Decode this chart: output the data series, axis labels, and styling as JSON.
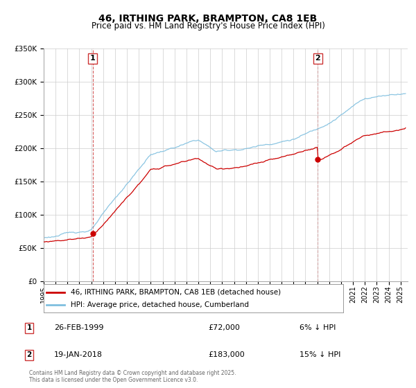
{
  "title": "46, IRTHING PARK, BRAMPTON, CA8 1EB",
  "subtitle": "Price paid vs. HM Land Registry's House Price Index (HPI)",
  "ylim": [
    0,
    350000
  ],
  "yticks": [
    0,
    50000,
    100000,
    150000,
    200000,
    250000,
    300000,
    350000
  ],
  "x_start_year": 1995,
  "x_end_year": 2025,
  "sale1_price": 72000,
  "sale1_year": 1999.12,
  "sale2_price": 183000,
  "sale2_year": 2018.05,
  "line_color_red": "#cc0000",
  "line_color_blue": "#7fbfdf",
  "vline_color": "#cc3333",
  "grid_color": "#cccccc",
  "background_color": "#ffffff",
  "legend_label_red": "46, IRTHING PARK, BRAMPTON, CA8 1EB (detached house)",
  "legend_label_blue": "HPI: Average price, detached house, Cumberland",
  "annotation1_text": "26-FEB-1999",
  "annotation1_price": "£72,000",
  "annotation1_pct": "6% ↓ HPI",
  "annotation2_text": "19-JAN-2018",
  "annotation2_price": "£183,000",
  "annotation2_pct": "15% ↓ HPI",
  "footer_text": "Contains HM Land Registry data © Crown copyright and database right 2025.\nThis data is licensed under the Open Government Licence v3.0.",
  "title_fontsize": 10,
  "subtitle_fontsize": 8.5,
  "tick_fontsize": 7.5
}
